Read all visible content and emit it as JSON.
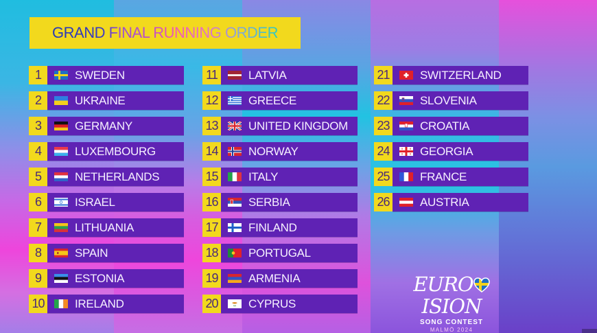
{
  "title": "GRAND FINAL RUNNING ORDER",
  "colors": {
    "title_box": "#f2d91d",
    "number_box": "#f2d91d",
    "bar": "#5f22b4",
    "bar_text": "#f6f0ff",
    "number_text": "#4a2a78"
  },
  "columns": [
    [
      {
        "order": "1",
        "country": "SWEDEN",
        "flag": "flag-sweden-icon"
      },
      {
        "order": "2",
        "country": "UKRAINE",
        "flag": "flag-ukraine-icon"
      },
      {
        "order": "3",
        "country": "GERMANY",
        "flag": "flag-germany-icon"
      },
      {
        "order": "4",
        "country": "LUXEMBOURG",
        "flag": "flag-luxembourg-icon"
      },
      {
        "order": "5",
        "country": "NETHERLANDS",
        "flag": "flag-netherlands-icon"
      },
      {
        "order": "6",
        "country": "ISRAEL",
        "flag": "flag-israel-icon"
      },
      {
        "order": "7",
        "country": "LITHUANIA",
        "flag": "flag-lithuania-icon"
      },
      {
        "order": "8",
        "country": "SPAIN",
        "flag": "flag-spain-icon"
      },
      {
        "order": "9",
        "country": "ESTONIA",
        "flag": "flag-estonia-icon"
      },
      {
        "order": "10",
        "country": "IRELAND",
        "flag": "flag-ireland-icon"
      }
    ],
    [
      {
        "order": "11",
        "country": "LATVIA",
        "flag": "flag-latvia-icon"
      },
      {
        "order": "12",
        "country": "GREECE",
        "flag": "flag-greece-icon"
      },
      {
        "order": "13",
        "country": "UNITED KINGDOM",
        "flag": "flag-united-kingdom-icon"
      },
      {
        "order": "14",
        "country": "NORWAY",
        "flag": "flag-norway-icon"
      },
      {
        "order": "15",
        "country": "ITALY",
        "flag": "flag-italy-icon"
      },
      {
        "order": "16",
        "country": "SERBIA",
        "flag": "flag-serbia-icon"
      },
      {
        "order": "17",
        "country": "FINLAND",
        "flag": "flag-finland-icon"
      },
      {
        "order": "18",
        "country": "PORTUGAL",
        "flag": "flag-portugal-icon"
      },
      {
        "order": "19",
        "country": "ARMENIA",
        "flag": "flag-armenia-icon"
      },
      {
        "order": "20",
        "country": "CYPRUS",
        "flag": "flag-cyprus-icon"
      }
    ],
    [
      {
        "order": "21",
        "country": "SWITZERLAND",
        "flag": "flag-switzerland-icon"
      },
      {
        "order": "22",
        "country": "SLOVENIA",
        "flag": "flag-slovenia-icon"
      },
      {
        "order": "23",
        "country": "CROATIA",
        "flag": "flag-croatia-icon"
      },
      {
        "order": "24",
        "country": "GEORGIA",
        "flag": "flag-georgia-icon"
      },
      {
        "order": "25",
        "country": "FRANCE",
        "flag": "flag-france-icon"
      },
      {
        "order": "26",
        "country": "AUSTRIA",
        "flag": "flag-austria-icon"
      }
    ]
  ],
  "logo": {
    "word_left": "EURO",
    "word_right": "ISION",
    "subtitle": "SONG CONTEST",
    "city_year": "MALMÖ 2024"
  }
}
